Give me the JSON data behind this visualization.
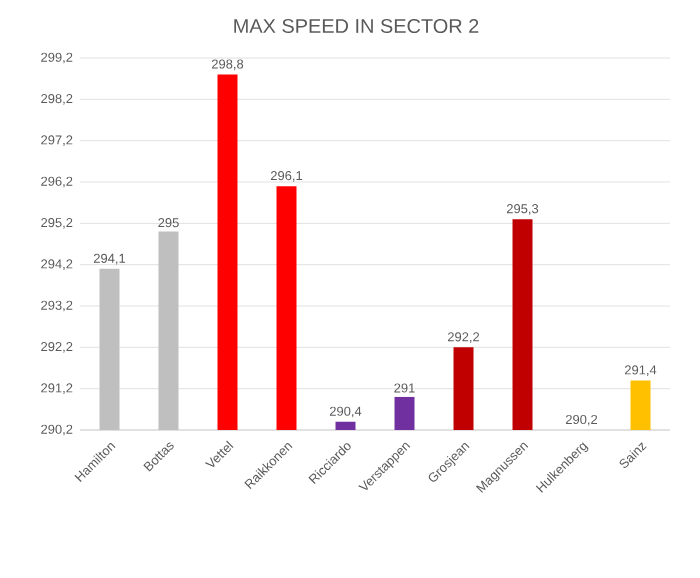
{
  "chart_data": {
    "type": "bar",
    "title": "MAX SPEED IN SECTOR 2",
    "categories": [
      "Hamilton",
      "Bottas",
      "Vettel",
      "Raikkonen",
      "Ricciardo",
      "Verstappen",
      "Grosjean",
      "Magnussen",
      "Hulkenberg",
      "Sainz"
    ],
    "values": [
      294.1,
      295,
      298.8,
      296.1,
      290.4,
      291,
      292.2,
      295.3,
      290.2,
      291.4
    ],
    "value_labels": [
      "294,1",
      "295",
      "298,8",
      "296,1",
      "290,4",
      "291",
      "292,2",
      "295,3",
      "290,2",
      "291,4"
    ],
    "colors": [
      "#bfbfbf",
      "#bfbfbf",
      "#ff0000",
      "#ff0000",
      "#7030a0",
      "#7030a0",
      "#c00000",
      "#c00000",
      "#ffffff",
      "#ffc000"
    ],
    "ylim": [
      290.2,
      299.2
    ],
    "yticks": [
      {
        "value": 290.2,
        "label": "290,2"
      },
      {
        "value": 291.2,
        "label": "291,2"
      },
      {
        "value": 292.2,
        "label": "292,2"
      },
      {
        "value": 293.2,
        "label": "293,2"
      },
      {
        "value": 294.2,
        "label": "294,2"
      },
      {
        "value": 295.2,
        "label": "295,2"
      },
      {
        "value": 296.2,
        "label": "296,2"
      },
      {
        "value": 297.2,
        "label": "297,2"
      },
      {
        "value": 298.2,
        "label": "298,2"
      },
      {
        "value": 299.2,
        "label": "299,2"
      }
    ],
    "grid": "y"
  }
}
